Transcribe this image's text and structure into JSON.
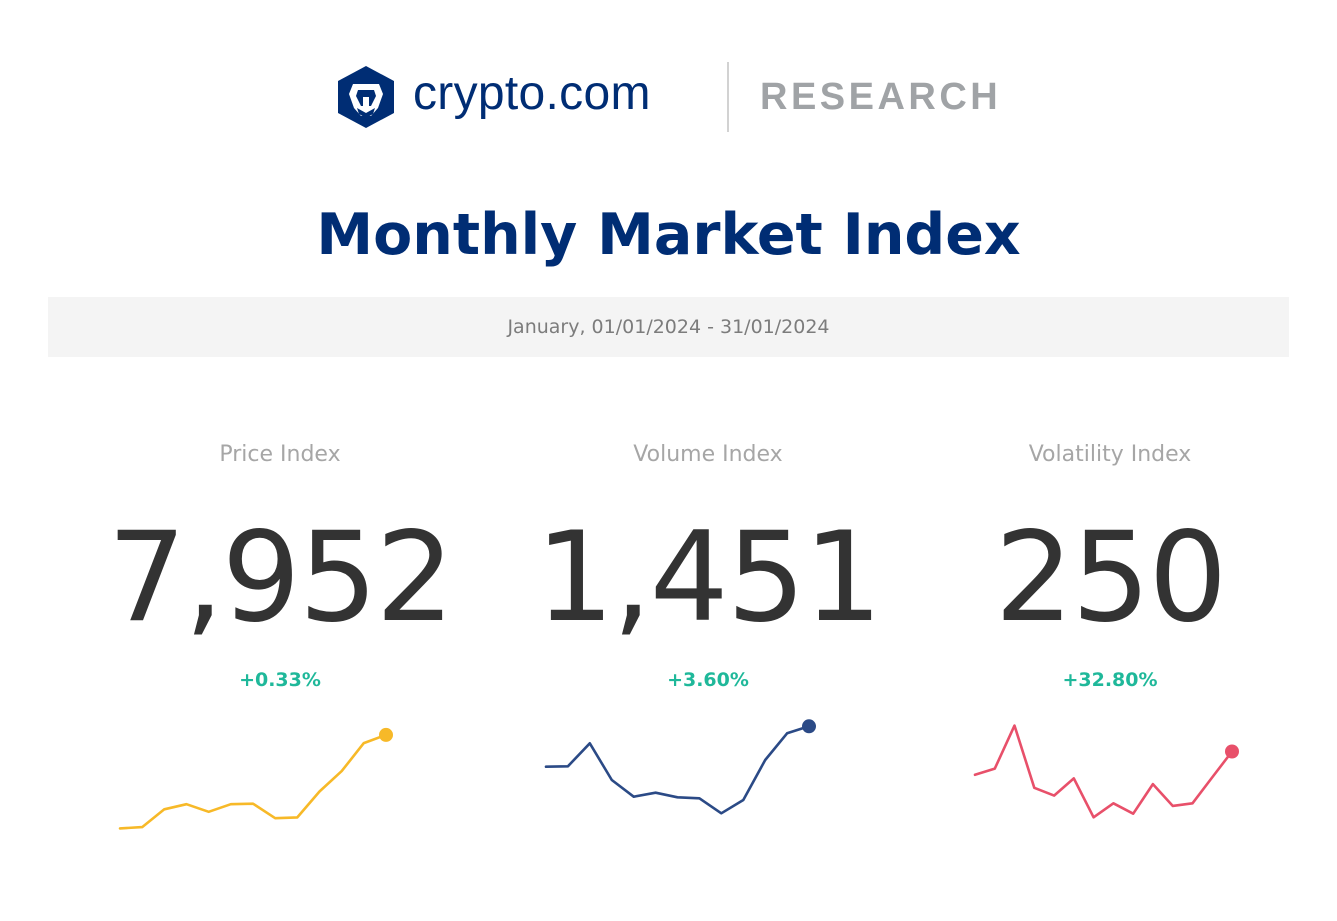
{
  "brand": {
    "name": "crypto.com",
    "section": "RESEARCH",
    "logo_icon": "lion-shield-icon"
  },
  "title": "Monthly Market Index",
  "date_range": "January, 01/01/2024 - 31/01/2024",
  "colors": {
    "brand_navy": "#002d74",
    "positive_change": "#1fb89a",
    "price_line": "#f7b928",
    "volume_line": "#2b4a86",
    "volatility_line": "#e8506a"
  },
  "indices": {
    "price": {
      "label": "Price Index",
      "value": "7,952",
      "change": "+0.33%"
    },
    "volume": {
      "label": "Volume Index",
      "value": "1,451",
      "change": "+3.60%"
    },
    "volatility": {
      "label": "Volatility Index",
      "value": "250",
      "change": "+32.80%"
    }
  },
  "chart_data": [
    {
      "type": "line",
      "name_ref": "indices.price",
      "color": "#f7b928",
      "values": [
        7585,
        7590,
        7660,
        7680,
        7650,
        7680,
        7682,
        7625,
        7628,
        7730,
        7810,
        7920,
        7952
      ],
      "ylim": [
        7500,
        8050
      ],
      "end_marker": true
    },
    {
      "type": "line",
      "name_ref": "indices.volume",
      "color": "#2b4a86",
      "values": [
        1330,
        1331,
        1400,
        1290,
        1240,
        1252,
        1238,
        1235,
        1190,
        1230,
        1350,
        1430,
        1451
      ],
      "ylim": [
        1080,
        1500
      ],
      "end_marker": true
    },
    {
      "type": "line",
      "name_ref": "indices.volatility",
      "color": "#e8506a",
      "values": [
        205,
        217,
        300,
        180,
        165,
        198,
        123,
        150,
        130,
        187,
        145,
        150,
        200,
        250
      ],
      "ylim": [
        60,
        330
      ],
      "end_marker": true
    }
  ]
}
